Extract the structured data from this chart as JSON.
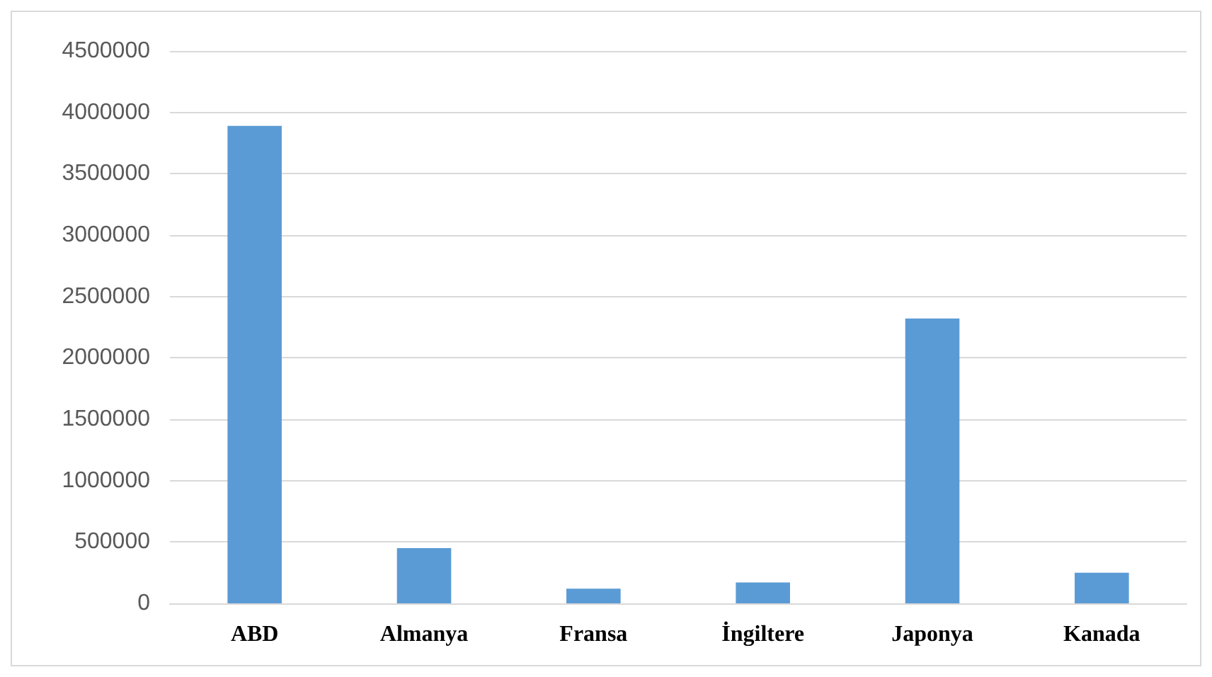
{
  "chart_data": {
    "type": "bar",
    "categories": [
      "ABD",
      "Almanya",
      "Fransa",
      "İngiltere",
      "Japonya",
      "Kanada"
    ],
    "values": [
      3890000,
      450000,
      120000,
      170000,
      2320000,
      250000
    ],
    "color": "#5b9bd5",
    "ylim": [
      0,
      4500000
    ],
    "yticks": [
      0,
      500000,
      1000000,
      1500000,
      2000000,
      2500000,
      3000000,
      3500000,
      4000000,
      4500000
    ],
    "grid": "y"
  }
}
